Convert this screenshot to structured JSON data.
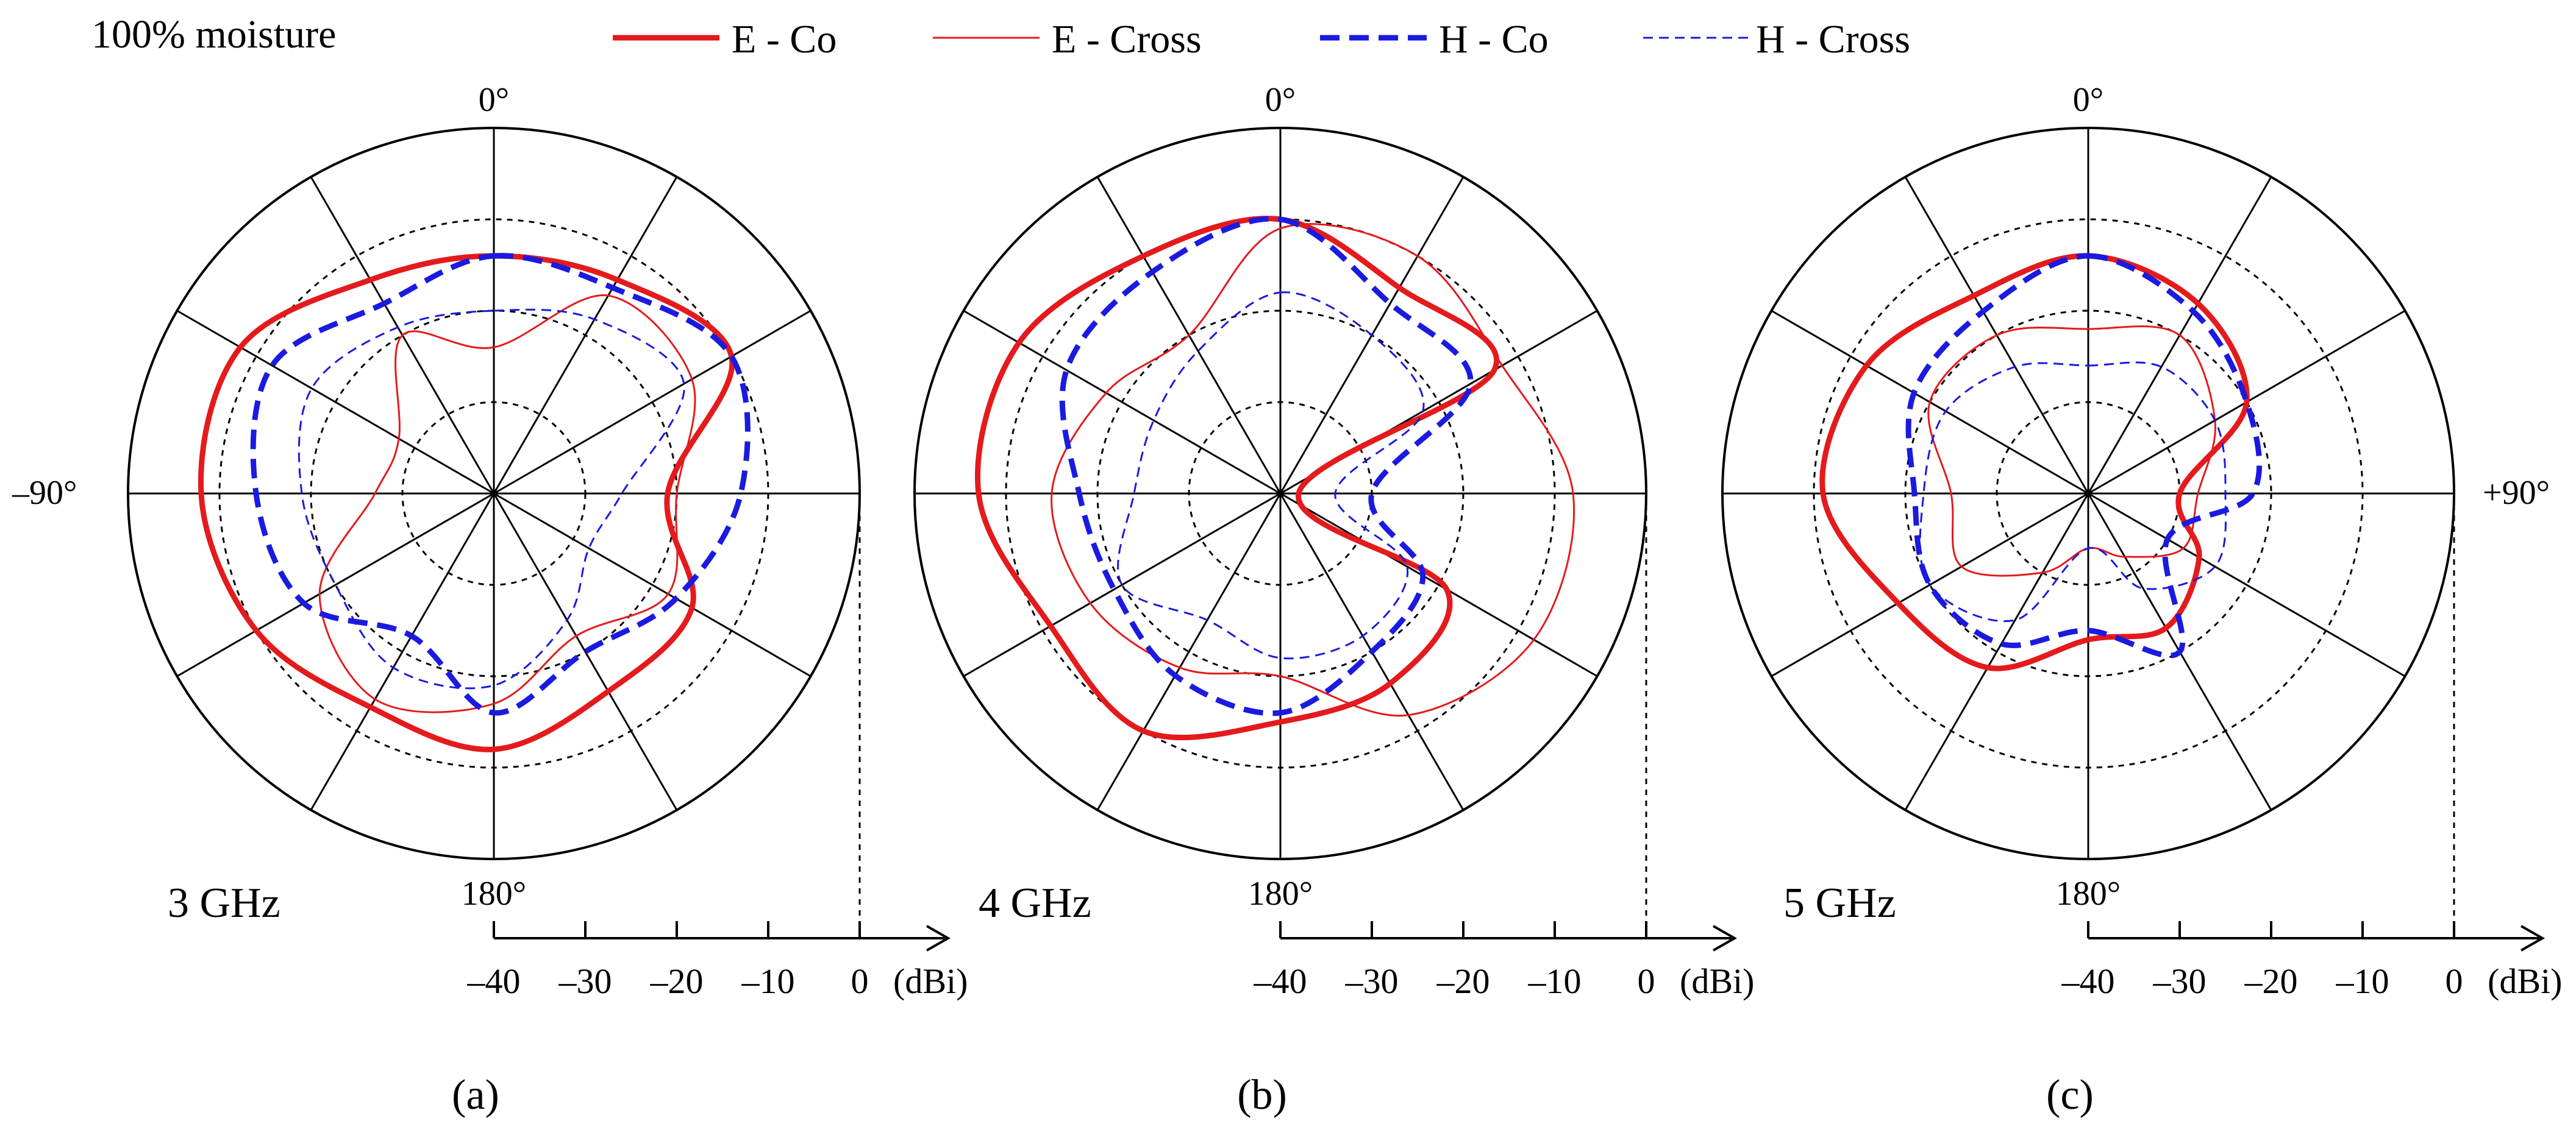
{
  "figure": {
    "condition": "100% moisture",
    "legend": [
      {
        "label": "E - Co",
        "color": "#e41a1c",
        "style": "solid-thick"
      },
      {
        "label": "E - Cross",
        "color": "#e41a1c",
        "style": "solid-thin"
      },
      {
        "label": "H - Co",
        "color": "#1a1ae0",
        "style": "dashed-thick"
      },
      {
        "label": "H - Cross",
        "color": "#1a1ae0",
        "style": "dashed-thin"
      }
    ],
    "angle_labels": {
      "top": "0°",
      "bottom": "180°",
      "left": "–90°",
      "right": "+90°"
    },
    "scale_ticks": [
      "–40",
      "–30",
      "–20",
      "–10",
      "0"
    ],
    "scale_unit": "(dBi)"
  },
  "chart_data": [
    {
      "type": "line",
      "subplot": "(a)",
      "title": "3 GHz",
      "projection": "polar",
      "angle_unit": "deg",
      "r_unit": "dBi",
      "rlim": [
        -40,
        0
      ],
      "rings_dBi": [
        -30,
        -20,
        -10
      ],
      "angles_deg": [
        0,
        30,
        60,
        90,
        120,
        150,
        180,
        210,
        240,
        270,
        300,
        330
      ],
      "series": [
        {
          "name": "E - Co",
          "values": [
            -14,
            -13,
            -10,
            -21,
            -15,
            -15,
            -12,
            -13,
            -10,
            -8,
            -8,
            -13
          ]
        },
        {
          "name": "E - Cross",
          "values": [
            -24,
            -15,
            -15,
            -20,
            -18,
            -22,
            -17,
            -14,
            -18,
            -27,
            -28,
            -20
          ]
        },
        {
          "name": "H - Co",
          "values": [
            -14,
            -14,
            -10,
            -13,
            -17,
            -20,
            -16,
            -22,
            -16,
            -14,
            -12,
            -16
          ]
        },
        {
          "name": "H - Cross",
          "values": [
            -20,
            -18,
            -16,
            -26,
            -28,
            -24,
            -19,
            -18,
            -20,
            -19,
            -17,
            -19
          ]
        }
      ]
    },
    {
      "type": "line",
      "subplot": "(b)",
      "title": "4 GHz",
      "projection": "polar",
      "angle_unit": "deg",
      "r_unit": "dBi",
      "rlim": [
        -40,
        0
      ],
      "rings_dBi": [
        -30,
        -20,
        -10
      ],
      "angles_deg": [
        0,
        30,
        60,
        90,
        120,
        150,
        180,
        210,
        240,
        270,
        300,
        330
      ],
      "series": [
        {
          "name": "E - Co",
          "values": [
            -10,
            -14,
            -13,
            -38,
            -19,
            -16,
            -15,
            -10,
            -11,
            -7,
            -7,
            -10
          ]
        },
        {
          "name": "E - Cross",
          "values": [
            -11,
            -10,
            -12,
            -8,
            -8,
            -12,
            -20,
            -18,
            -16,
            -15,
            -18,
            -20
          ]
        },
        {
          "name": "H - Co",
          "values": [
            -10,
            -16,
            -16,
            -30,
            -22,
            -20,
            -16,
            -17,
            -19,
            -18,
            -13,
            -12
          ]
        },
        {
          "name": "H - Cross",
          "values": [
            -18,
            -20,
            -22,
            -34,
            -24,
            -22,
            -22,
            -24,
            -20,
            -24,
            -24,
            -22
          ]
        }
      ]
    },
    {
      "type": "line",
      "subplot": "(c)",
      "title": "5 GHz",
      "projection": "polar",
      "angle_unit": "deg",
      "r_unit": "dBi",
      "rlim": [
        -40,
        0
      ],
      "rings_dBi": [
        -30,
        -20,
        -10
      ],
      "angles_deg": [
        0,
        30,
        60,
        90,
        120,
        150,
        180,
        210,
        240,
        270,
        300,
        330
      ],
      "series": [
        {
          "name": "E - Co",
          "values": [
            -14,
            -16,
            -20,
            -30,
            -26,
            -23,
            -24,
            -18,
            -16,
            -11,
            -12,
            -15
          ]
        },
        {
          "name": "E - Cross",
          "values": [
            -22,
            -20,
            -24,
            -28,
            -28,
            -32,
            -34,
            -30,
            -24,
            -25,
            -20,
            -20
          ]
        },
        {
          "name": "H - Co",
          "values": [
            -14,
            -17,
            -20,
            -22,
            -30,
            -20,
            -25,
            -21,
            -20,
            -21,
            -18,
            -17
          ]
        },
        {
          "name": "H - Cross",
          "values": [
            -26,
            -24,
            -24,
            -25,
            -24,
            -28,
            -34,
            -24,
            -20,
            -22,
            -22,
            -24
          ]
        }
      ]
    }
  ]
}
